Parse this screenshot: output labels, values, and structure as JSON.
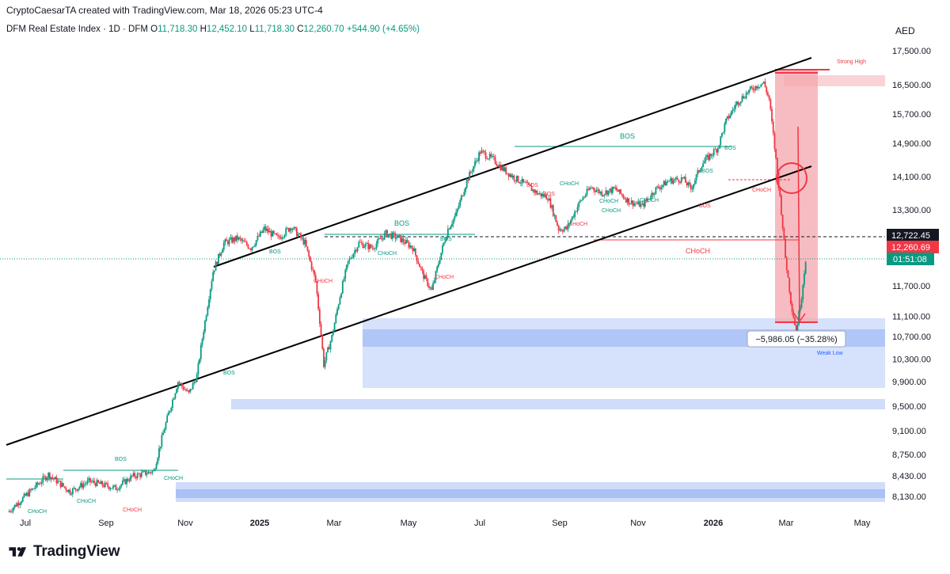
{
  "header": {
    "credit": "CryptoCaesarTA created with TradingView.com, Mar 18, 2026 05:23 UTC-4",
    "symbol": "DFM Real Estate Index · 1D · DFM",
    "o_label": "O",
    "o_value": "11,718.30",
    "h_label": "H",
    "h_value": "12,452.10",
    "l_label": "L",
    "l_value": "11,718.30",
    "c_label": "C",
    "c_value": "12,260.70",
    "change": "+544.90 (+4.65%)",
    "currency": "AED"
  },
  "colors": {
    "up": "#089981",
    "down": "#f23645",
    "channel": "#000000",
    "demand_zone": "#bcd0f7",
    "supply_zone": "#f7c6c9",
    "accent_blue": "#2962ff"
  },
  "chart_data": {
    "type": "candlestick",
    "title": "DFM Real Estate Index · 1D · DFM",
    "ylabel": "AED",
    "ylim": [
      7950,
      17700
    ],
    "y_ticks": [
      "17,500.00",
      "16,500.00",
      "15,700.00",
      "14,900.00",
      "14,100.00",
      "13,300.00",
      "11,700.00",
      "11,100.00",
      "10,700.00",
      "10,300.00",
      "9,900.00",
      "9,500.00",
      "9,100.00",
      "8,750.00",
      "8,430.00",
      "8,130.00"
    ],
    "x_ticks": [
      {
        "label": "Jul",
        "bold": false
      },
      {
        "label": "Sep",
        "bold": false
      },
      {
        "label": "Nov",
        "bold": false
      },
      {
        "label": "2025",
        "bold": true
      },
      {
        "label": "Mar",
        "bold": false
      },
      {
        "label": "May",
        "bold": false
      },
      {
        "label": "Jul",
        "bold": false
      },
      {
        "label": "Sep",
        "bold": false
      },
      {
        "label": "Nov",
        "bold": false
      },
      {
        "label": "2026",
        "bold": true
      },
      {
        "label": "Mar",
        "bold": false
      },
      {
        "label": "May",
        "bold": false
      }
    ],
    "price_path": [
      [
        0,
        7900
      ],
      [
        1.5,
        8450
      ],
      [
        2.3,
        8200
      ],
      [
        3.0,
        8350
      ],
      [
        4.0,
        8250
      ],
      [
        4.6,
        8420
      ],
      [
        5.4,
        8500
      ],
      [
        5.9,
        9300
      ],
      [
        6.3,
        9900
      ],
      [
        6.7,
        9700
      ],
      [
        7.0,
        10000
      ],
      [
        7.3,
        11000
      ],
      [
        7.6,
        12000
      ],
      [
        8.0,
        12600
      ],
      [
        8.5,
        12700
      ],
      [
        9.0,
        12500
      ],
      [
        9.5,
        12900
      ],
      [
        10.0,
        12700
      ],
      [
        10.5,
        12950
      ],
      [
        11.0,
        12600
      ],
      [
        11.4,
        11800
      ],
      [
        11.7,
        10200
      ],
      [
        12.0,
        10700
      ],
      [
        12.3,
        11500
      ],
      [
        12.6,
        12200
      ],
      [
        13.0,
        12600
      ],
      [
        13.5,
        12500
      ],
      [
        14.0,
        12800
      ],
      [
        14.5,
        12700
      ],
      [
        15.0,
        12500
      ],
      [
        15.4,
        11900
      ],
      [
        15.7,
        11600
      ],
      [
        16.0,
        12300
      ],
      [
        16.3,
        12900
      ],
      [
        16.6,
        13200
      ],
      [
        17.0,
        14000
      ],
      [
        17.5,
        14700
      ],
      [
        18.0,
        14500
      ],
      [
        18.3,
        14300
      ],
      [
        18.7,
        14100
      ],
      [
        19.2,
        13900
      ],
      [
        19.6,
        13700
      ],
      [
        20.0,
        13600
      ],
      [
        20.4,
        12900
      ],
      [
        20.7,
        12900
      ],
      [
        21.2,
        13500
      ],
      [
        21.6,
        13850
      ],
      [
        22.0,
        13700
      ],
      [
        22.5,
        13800
      ],
      [
        23.0,
        13500
      ],
      [
        23.5,
        13400
      ],
      [
        24.0,
        13800
      ],
      [
        24.5,
        14000
      ],
      [
        25.0,
        14050
      ],
      [
        25.3,
        13800
      ],
      [
        25.7,
        14400
      ],
      [
        26.0,
        14600
      ],
      [
        26.3,
        14800
      ],
      [
        26.6,
        15500
      ],
      [
        27.0,
        16000
      ],
      [
        27.4,
        16300
      ],
      [
        27.8,
        16500
      ],
      [
        28.0,
        16550
      ],
      [
        28.2,
        16100
      ],
      [
        28.4,
        14800
      ],
      [
        28.6,
        13600
      ],
      [
        28.8,
        12300
      ],
      [
        29.0,
        11400
      ],
      [
        29.2,
        10800
      ],
      [
        29.4,
        11500
      ],
      [
        29.55,
        12260
      ]
    ],
    "key_levels": [
      {
        "label": "12,722.45",
        "value": 12722.45,
        "color": "#131722"
      },
      {
        "label": "12,260.69",
        "value": 12260.69,
        "color": "#f23645"
      },
      {
        "label": "01:51:08",
        "value": 12050,
        "color": "#089981"
      }
    ],
    "annotations": {
      "bos": [
        "BOS",
        "BOS",
        "BOS",
        "BOS",
        "BOS",
        "BOS",
        "BOS",
        "BOS",
        "BOS",
        "BOS",
        "BOS"
      ],
      "choch": [
        "CHoCH",
        "CHoCH",
        "CHoCH",
        "CHoCH",
        "CHoCH",
        "CHoCH",
        "CHoCH",
        "CHoCH",
        "CHoCH",
        "CHoCH",
        "CHoCH",
        "CHoCH",
        "CHoCH",
        "CHoCH"
      ],
      "strong_high": "Strong High",
      "weak_low": "Weak Low",
      "measure": "−5,986.05 (−35.28%)"
    }
  },
  "branding": {
    "logo_text": "TradingView"
  }
}
